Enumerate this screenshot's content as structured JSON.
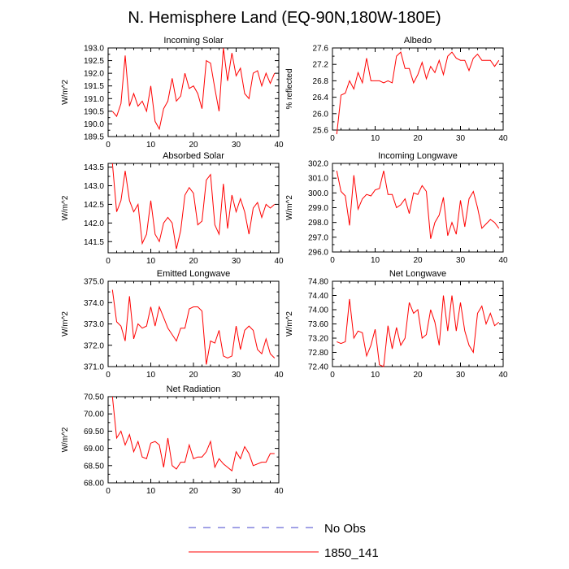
{
  "figure_title": "N. Hemisphere Land (EQ-90N,180W-180E)",
  "legend": {
    "items": [
      {
        "label": "No Obs",
        "color": "#4444cc",
        "style": "dashed"
      },
      {
        "label": "1850_141",
        "color": "#ff0000",
        "style": "solid"
      }
    ]
  },
  "colors": {
    "line": "#ff0000",
    "axis": "#000000"
  },
  "chart_data": [
    {
      "type": "line",
      "title": "Incoming Solar",
      "ylabel": "W/m^2",
      "xlim": [
        0,
        40
      ],
      "ylim": [
        189.5,
        193.0
      ],
      "xticks": [
        0,
        10,
        20,
        30,
        40
      ],
      "yticks": [
        189.5,
        190.0,
        190.5,
        191.0,
        191.5,
        192.0,
        192.5,
        193.0
      ],
      "ytick_labels": [
        "189.5",
        "190.0",
        "190.5",
        "191.0",
        "191.5",
        "192.0",
        "192.5",
        "193.0"
      ],
      "x": [
        1,
        2,
        3,
        4,
        5,
        6,
        7,
        8,
        9,
        10,
        11,
        12,
        13,
        14,
        15,
        16,
        17,
        18,
        19,
        20,
        21,
        22,
        23,
        24,
        25,
        26,
        27,
        28,
        29,
        30,
        31,
        32,
        33,
        34,
        35,
        36,
        37,
        38,
        39
      ],
      "values": [
        190.5,
        190.3,
        190.8,
        192.7,
        190.7,
        191.2,
        190.7,
        190.9,
        190.5,
        191.5,
        190.1,
        189.8,
        190.6,
        190.9,
        191.8,
        190.9,
        191.1,
        192.0,
        191.4,
        191.5,
        191.2,
        190.6,
        192.5,
        192.4,
        191.4,
        190.5,
        193.0,
        191.7,
        192.8,
        191.9,
        192.2,
        191.2,
        191.0,
        192.0,
        192.1,
        191.5,
        192.0,
        191.6,
        192.0
      ]
    },
    {
      "type": "line",
      "title": "Albedo",
      "ylabel": "% reflected",
      "xlim": [
        0,
        40
      ],
      "ylim": [
        25.6,
        27.6
      ],
      "xticks": [
        0,
        10,
        20,
        30,
        40
      ],
      "yticks": [
        25.6,
        26.0,
        26.4,
        26.8,
        27.2,
        27.6
      ],
      "ytick_labels": [
        "25.6",
        "26.0",
        "26.4",
        "26.8",
        "27.2",
        "27.6"
      ],
      "x": [
        1,
        2,
        3,
        4,
        5,
        6,
        7,
        8,
        9,
        10,
        11,
        12,
        13,
        14,
        15,
        16,
        17,
        18,
        19,
        20,
        21,
        22,
        23,
        24,
        25,
        26,
        27,
        28,
        29,
        30,
        31,
        32,
        33,
        34,
        35,
        36,
        37,
        38,
        39
      ],
      "values": [
        25.5,
        26.45,
        26.5,
        26.8,
        26.6,
        27.0,
        26.75,
        27.35,
        26.8,
        26.8,
        26.8,
        26.75,
        26.8,
        26.75,
        27.4,
        27.5,
        27.1,
        27.1,
        26.75,
        26.95,
        27.25,
        26.85,
        27.15,
        27.0,
        27.3,
        26.95,
        27.4,
        27.5,
        27.35,
        27.3,
        27.3,
        27.05,
        27.35,
        27.45,
        27.3,
        27.3,
        27.3,
        27.15,
        27.3
      ]
    },
    {
      "type": "line",
      "title": "Absorbed Solar",
      "ylabel": "W/m^2",
      "xlim": [
        0,
        40
      ],
      "ylim": [
        141.2,
        143.6
      ],
      "xticks": [
        0,
        10,
        20,
        30,
        40
      ],
      "yticks": [
        141.5,
        142.0,
        142.5,
        143.0,
        143.5
      ],
      "ytick_labels": [
        "141.5",
        "142.0",
        "142.5",
        "143.0",
        "143.5"
      ],
      "x": [
        1,
        2,
        3,
        4,
        5,
        6,
        7,
        8,
        9,
        10,
        11,
        12,
        13,
        14,
        15,
        16,
        17,
        18,
        19,
        20,
        21,
        22,
        23,
        24,
        25,
        26,
        27,
        28,
        29,
        30,
        31,
        32,
        33,
        34,
        35,
        36,
        37,
        38,
        39
      ],
      "values": [
        143.6,
        142.3,
        142.6,
        143.4,
        142.6,
        142.3,
        142.5,
        141.45,
        141.7,
        142.6,
        141.7,
        141.5,
        142.0,
        142.15,
        142.0,
        141.3,
        141.8,
        142.75,
        142.95,
        142.8,
        141.95,
        142.05,
        143.15,
        143.3,
        141.95,
        141.7,
        143.05,
        141.85,
        142.75,
        142.3,
        142.65,
        142.3,
        141.7,
        142.4,
        142.55,
        142.15,
        142.5,
        142.4,
        142.5
      ]
    },
    {
      "type": "line",
      "title": "Incoming Longwave",
      "ylabel": "W/m^2",
      "xlim": [
        0,
        40
      ],
      "ylim": [
        296.0,
        302.0
      ],
      "xticks": [
        0,
        10,
        20,
        30,
        40
      ],
      "yticks": [
        296.0,
        297.0,
        298.0,
        299.0,
        300.0,
        301.0,
        302.0
      ],
      "ytick_labels": [
        "296.0",
        "297.0",
        "298.0",
        "299.0",
        "300.0",
        "301.0",
        "302.0"
      ],
      "x": [
        1,
        2,
        3,
        4,
        5,
        6,
        7,
        8,
        9,
        10,
        11,
        12,
        13,
        14,
        15,
        16,
        17,
        18,
        19,
        20,
        21,
        22,
        23,
        24,
        25,
        26,
        27,
        28,
        29,
        30,
        31,
        32,
        33,
        34,
        35,
        36,
        37,
        38,
        39
      ],
      "values": [
        301.5,
        300.1,
        299.8,
        297.8,
        301.2,
        298.9,
        299.6,
        299.9,
        299.8,
        300.2,
        300.3,
        301.5,
        299.9,
        299.9,
        299.0,
        299.2,
        299.6,
        298.6,
        300.0,
        299.9,
        300.5,
        300.1,
        296.9,
        298.0,
        298.5,
        299.7,
        297.1,
        298.0,
        297.2,
        299.5,
        297.7,
        299.6,
        300.1,
        299.0,
        297.6,
        297.9,
        298.2,
        298.0,
        297.6
      ]
    },
    {
      "type": "line",
      "title": "Emitted Longwave",
      "ylabel": "W/m^2",
      "xlim": [
        0,
        40
      ],
      "ylim": [
        371.0,
        375.0
      ],
      "xticks": [
        0,
        10,
        20,
        30,
        40
      ],
      "yticks": [
        371.0,
        372.0,
        373.0,
        374.0,
        375.0
      ],
      "ytick_labels": [
        "371.0",
        "372.0",
        "373.0",
        "374.0",
        "375.0"
      ],
      "x": [
        1,
        2,
        3,
        4,
        5,
        6,
        7,
        8,
        9,
        10,
        11,
        12,
        13,
        14,
        15,
        16,
        17,
        18,
        19,
        20,
        21,
        22,
        23,
        24,
        25,
        26,
        27,
        28,
        29,
        30,
        31,
        32,
        33,
        34,
        35,
        36,
        37,
        38,
        39
      ],
      "values": [
        374.6,
        373.1,
        372.9,
        372.2,
        374.3,
        372.3,
        373.0,
        372.8,
        372.9,
        373.8,
        372.9,
        373.8,
        373.3,
        372.8,
        372.5,
        372.2,
        372.8,
        372.8,
        373.7,
        373.8,
        373.8,
        373.6,
        371.1,
        372.2,
        372.1,
        372.7,
        371.5,
        371.4,
        371.5,
        372.9,
        371.8,
        372.7,
        372.9,
        372.7,
        371.8,
        371.6,
        372.3,
        371.6,
        371.4
      ]
    },
    {
      "type": "line",
      "title": "Net Longwave",
      "ylabel": "W/m^2",
      "xlim": [
        0,
        40
      ],
      "ylim": [
        72.4,
        74.8
      ],
      "xticks": [
        0,
        10,
        20,
        30,
        40
      ],
      "yticks": [
        72.4,
        72.8,
        73.2,
        73.6,
        74.0,
        74.4,
        74.8
      ],
      "ytick_labels": [
        "72.40",
        "72.80",
        "73.20",
        "73.60",
        "74.00",
        "74.40",
        "74.80"
      ],
      "x": [
        1,
        2,
        3,
        4,
        5,
        6,
        7,
        8,
        9,
        10,
        11,
        12,
        13,
        14,
        15,
        16,
        17,
        18,
        19,
        20,
        21,
        22,
        23,
        24,
        25,
        26,
        27,
        28,
        29,
        30,
        31,
        32,
        33,
        34,
        35,
        36,
        37,
        38,
        39
      ],
      "values": [
        73.1,
        73.05,
        73.1,
        74.3,
        73.2,
        73.4,
        73.35,
        72.7,
        73.0,
        73.45,
        72.45,
        72.4,
        73.55,
        72.9,
        73.5,
        73.0,
        73.2,
        74.2,
        73.9,
        74.0,
        73.2,
        73.3,
        74.0,
        73.65,
        73.0,
        74.4,
        73.4,
        74.4,
        73.4,
        74.2,
        73.4,
        73.0,
        72.8,
        73.9,
        74.1,
        73.6,
        73.9,
        73.55,
        73.65
      ]
    },
    {
      "type": "line",
      "title": "Net Radiation",
      "ylabel": "W/m^2",
      "xlim": [
        0,
        40
      ],
      "ylim": [
        68.0,
        70.5
      ],
      "xticks": [
        0,
        10,
        20,
        30,
        40
      ],
      "yticks": [
        68.0,
        68.5,
        69.0,
        69.5,
        70.0,
        70.5
      ],
      "ytick_labels": [
        "68.00",
        "68.50",
        "69.00",
        "69.50",
        "70.00",
        "70.50"
      ],
      "x": [
        1,
        2,
        3,
        4,
        5,
        6,
        7,
        8,
        9,
        10,
        11,
        12,
        13,
        14,
        15,
        16,
        17,
        18,
        19,
        20,
        21,
        22,
        23,
        24,
        25,
        26,
        27,
        28,
        29,
        30,
        31,
        32,
        33,
        34,
        35,
        36,
        37,
        38,
        39
      ],
      "values": [
        70.5,
        69.3,
        69.5,
        69.1,
        69.4,
        68.9,
        69.2,
        68.75,
        68.7,
        69.15,
        69.2,
        69.1,
        68.45,
        69.3,
        68.5,
        68.4,
        68.6,
        68.6,
        69.1,
        68.7,
        68.75,
        68.75,
        68.9,
        69.2,
        68.45,
        68.7,
        68.55,
        68.45,
        68.35,
        68.9,
        68.7,
        69.05,
        68.85,
        68.5,
        68.55,
        68.6,
        68.6,
        68.85,
        68.85
      ]
    }
  ]
}
